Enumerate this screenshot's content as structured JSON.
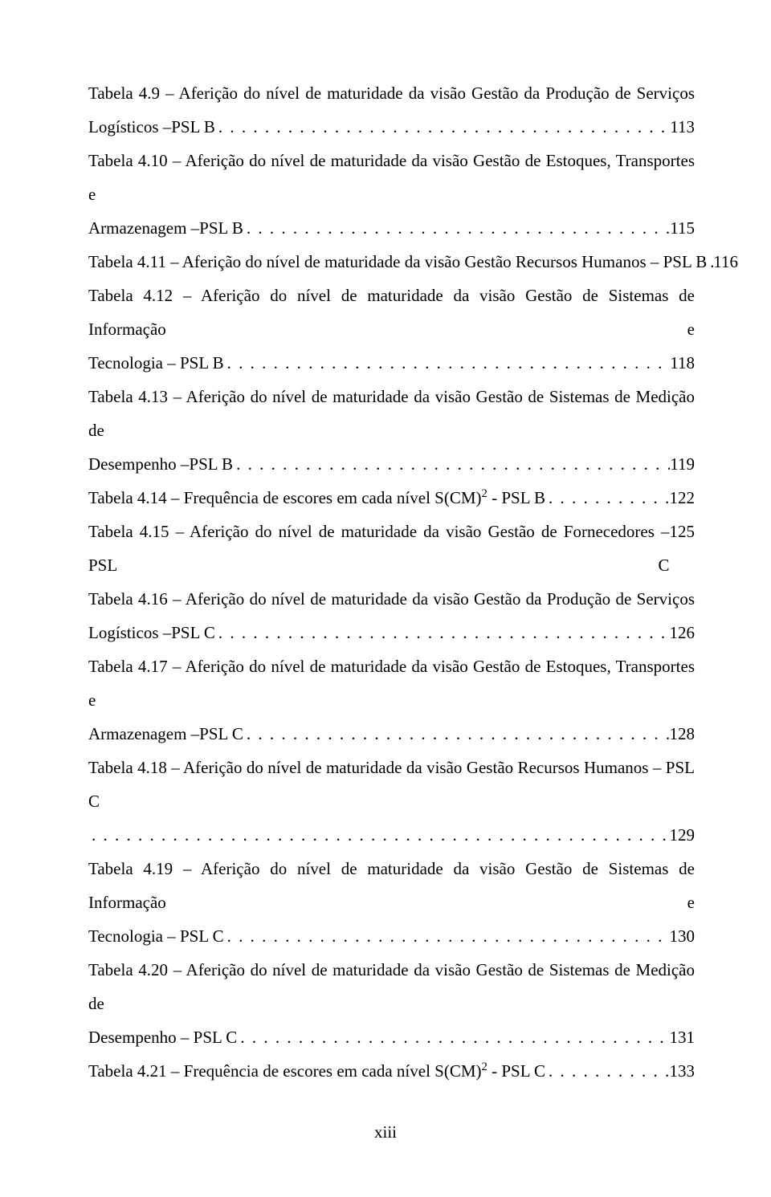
{
  "page": {
    "background_color": "#ffffff",
    "text_color": "#000000",
    "font_family": "Times New Roman",
    "font_size_pt": 12,
    "line_height": 2.0,
    "footer_label": "xiii"
  },
  "toc": [
    {
      "lines": [
        "Tabela 4.9 – Aferição do nível de maturidade da visão Gestão da Produção de Serviços"
      ],
      "last_line": "Logísticos –PSL B",
      "page": "113"
    },
    {
      "lines": [
        "Tabela 4.10 – Aferição do nível de maturidade da visão Gestão de Estoques, Transportes e"
      ],
      "last_line": "Armazenagem –PSL B",
      "page": "115"
    },
    {
      "lines": [],
      "last_line": "Tabela 4.11 – Aferição do nível de maturidade da visão Gestão Recursos Humanos – PSL B",
      "page": "116"
    },
    {
      "lines": [
        "Tabela 4.12 – Aferição do nível de maturidade da visão Gestão de Sistemas de Informação e"
      ],
      "last_line": "Tecnologia – PSL B",
      "page": "118"
    },
    {
      "lines": [
        "Tabela 4.13 – Aferição do nível de maturidade da visão Gestão de Sistemas de Medição de"
      ],
      "last_line": "Desempenho –PSL B",
      "page": "119"
    },
    {
      "lines": [],
      "last_line_html": "Tabela 4.14 – Frequência de escores em cada nível S(CM)<sup>2</sup> - PSL B",
      "last_line": "Tabela 4.14 – Frequência de escores em cada nível S(CM)2 - PSL B",
      "page": "122"
    },
    {
      "lines": [],
      "last_line": "Tabela 4.15 – Aferição do nível de maturidade da visão Gestão de Fornecedores – PSL C",
      "page": "125",
      "no_leader": true
    },
    {
      "lines": [
        "Tabela 4.16 – Aferição do nível de maturidade da visão Gestão da Produção de Serviços"
      ],
      "last_line": "Logísticos –PSL C",
      "page": "126"
    },
    {
      "lines": [
        "Tabela 4.17 – Aferição do nível de maturidade da visão Gestão de Estoques, Transportes e"
      ],
      "last_line": "Armazenagem –PSL C",
      "page": "128"
    },
    {
      "lines": [
        "Tabela 4.18 – Aferição do nível de maturidade da visão Gestão Recursos Humanos – PSL C"
      ],
      "last_line": "",
      "page": "129"
    },
    {
      "lines": [
        "Tabela 4.19 – Aferição do nível de maturidade da visão Gestão de Sistemas de Informação e"
      ],
      "last_line": "Tecnologia – PSL C",
      "page": "130"
    },
    {
      "lines": [
        "Tabela 4.20 – Aferição do nível de maturidade da visão Gestão de Sistemas de Medição de"
      ],
      "last_line": "Desempenho – PSL C",
      "page": "131"
    },
    {
      "lines": [],
      "last_line_html": "Tabela 4.21 – Frequência de escores em cada nível S(CM)<sup>2</sup> - PSL C",
      "last_line": "Tabela 4.21 – Frequência de escores em cada nível S(CM)2 - PSL C",
      "page": "133"
    }
  ]
}
